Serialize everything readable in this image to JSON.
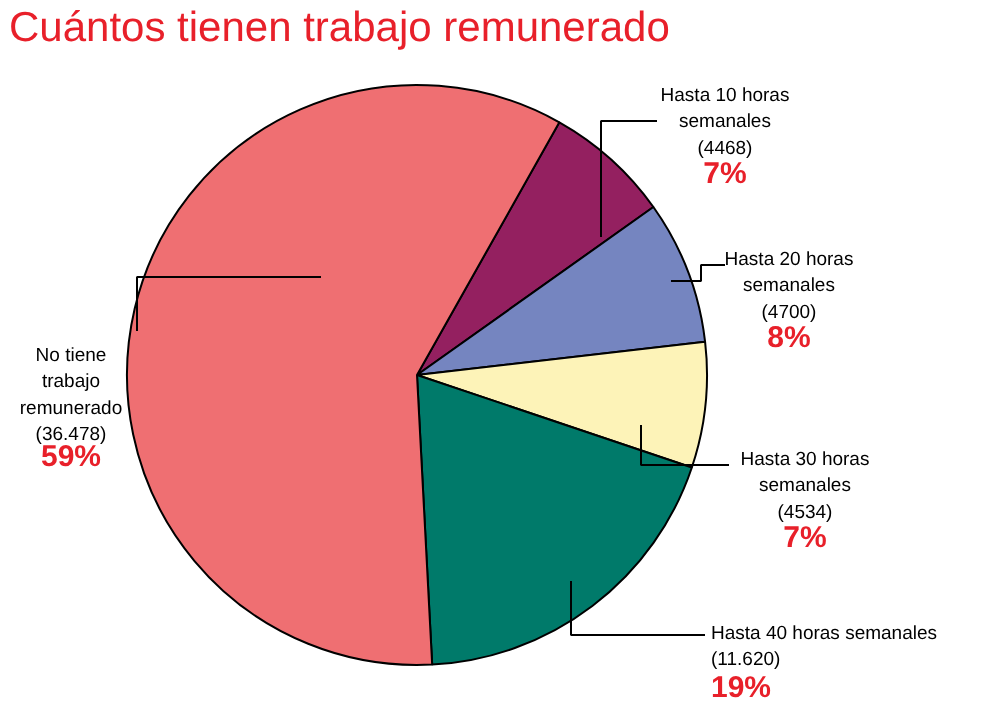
{
  "chart_data": {
    "type": "pie",
    "title": "Cuántos tienen trabajo remunerado",
    "categories": [
      "Hasta 10 horas\nsemanales\n(4468)",
      "Hasta 20 horas\nsemanales\n(4700)",
      "Hasta 30 horas\nsemanales\n(4534)",
      "Hasta 40 horas semanales\n(11.620)",
      "No tiene\ntrabajo\nremunerado\n(36.478)"
    ],
    "values": [
      7,
      8,
      7,
      19,
      59
    ],
    "colors": [
      "#942060",
      "#7585c0",
      "#fdf3b8",
      "#007a6a",
      "#ef6f72"
    ],
    "value_labels": [
      "7%",
      "8%",
      "7%",
      "19%",
      "59%"
    ]
  }
}
